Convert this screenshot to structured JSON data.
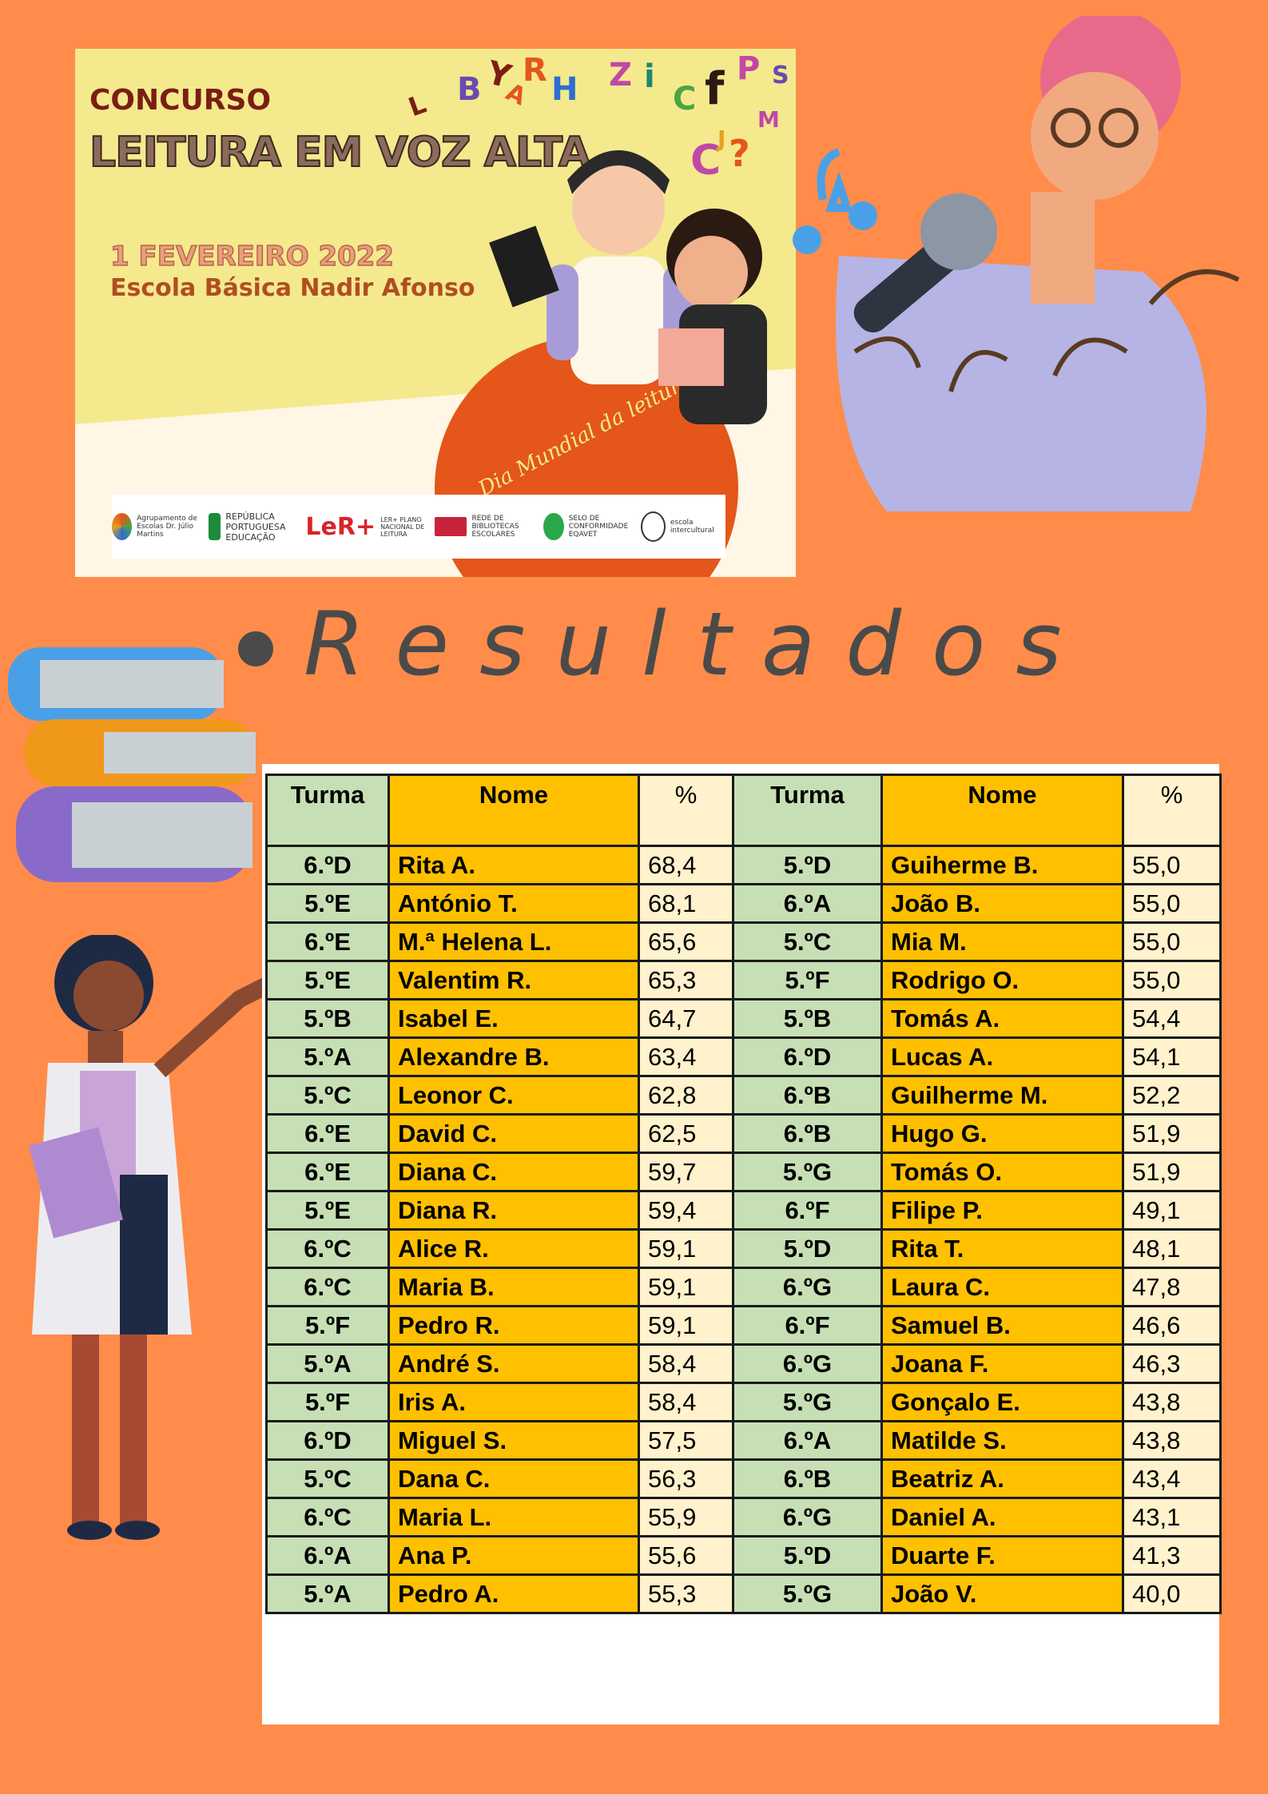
{
  "poster": {
    "concurso": "CONCURSO",
    "title": "LEITURA EM VOZ ALTA",
    "date": "1 FEVEREIRO 2022",
    "school": "Escola Básica Nadir Afonso",
    "arch_text": "Dia Mundial da leitura em Voz Alta",
    "letters": [
      "L",
      "B",
      "Y",
      "R",
      "A",
      "H",
      "Z",
      "i",
      "C",
      "f",
      "P",
      "S",
      "C",
      "?",
      "M",
      "J"
    ],
    "logos": [
      {
        "icon": "aena-logo",
        "label": "Agrupamento de Escolas Dr. Júlio Martins"
      },
      {
        "icon": "republica-portuguesa-logo",
        "label": "REPÚBLICA PORTUGUESA EDUCAÇÃO"
      },
      {
        "icon": "ler-logo",
        "label": "LER+ PLANO NACIONAL DE LEITURA"
      },
      {
        "icon": "rbe-logo",
        "label": "REDE DE BIBLIOTECAS ESCOLARES"
      },
      {
        "icon": "eqavet-logo",
        "label": "SELO DE CONFORMIDADE EQAVET"
      },
      {
        "icon": "escola-intercultural-logo",
        "label": "escola intercultural"
      }
    ]
  },
  "heading": "Resultados",
  "table": {
    "headers": [
      "Turma",
      "Nome",
      "%",
      "Turma",
      "Nome",
      "%"
    ],
    "rows": [
      [
        "6.ºD",
        "Rita A.",
        "68,4",
        "5.ºD",
        "Guiherme B.",
        "55,0"
      ],
      [
        "5.ºE",
        "António T.",
        "68,1",
        "6.ºA",
        "João B.",
        "55,0"
      ],
      [
        "6.ºE",
        "M.ª Helena L.",
        "65,6",
        "5.ºC",
        "Mia M.",
        "55,0"
      ],
      [
        "5.ºE",
        "Valentim R.",
        "65,3",
        "5.ºF",
        "Rodrigo O.",
        "55,0"
      ],
      [
        "5.ºB",
        "Isabel E.",
        "64,7",
        "5.ºB",
        "Tomás A.",
        "54,4"
      ],
      [
        "5.ºA",
        "Alexandre B.",
        "63,4",
        "6.ºD",
        "Lucas A.",
        "54,1"
      ],
      [
        "5.ºC",
        "Leonor C.",
        "62,8",
        "6.ºB",
        "Guilherme M.",
        "52,2"
      ],
      [
        "6.ºE",
        "David C.",
        "62,5",
        "6.ºB",
        "Hugo G.",
        "51,9"
      ],
      [
        "6.ºE",
        "Diana C.",
        "59,7",
        "5.ºG",
        "Tomás O.",
        "51,9"
      ],
      [
        "5.ºE",
        "Diana R.",
        "59,4",
        "6.ºF",
        "Filipe P.",
        "49,1"
      ],
      [
        "6.ºC",
        "Alice R.",
        "59,1",
        "5.ºD",
        "Rita T.",
        "48,1"
      ],
      [
        "6.ºC",
        "Maria B.",
        "59,1",
        "6.ºG",
        "Laura C.",
        "47,8"
      ],
      [
        "5.ºF",
        "Pedro R.",
        "59,1",
        "6.ºF",
        "Samuel B.",
        "46,6"
      ],
      [
        "5.ºA",
        "André S.",
        "58,4",
        "6.ºG",
        "Joana F.",
        "46,3"
      ],
      [
        "5.ºF",
        "Iris A.",
        "58,4",
        "5.ºG",
        "Gonçalo E.",
        "43,8"
      ],
      [
        "6.ºD",
        "Miguel S.",
        "57,5",
        "6.ºA",
        "Matilde S.",
        "43,8"
      ],
      [
        "5.ºC",
        "Dana C.",
        "56,3",
        "6.ºB",
        "Beatriz A.",
        "43,4"
      ],
      [
        "6.ºC",
        "Maria L.",
        "55,9",
        "6.ºG",
        "Daniel A.",
        "43,1"
      ],
      [
        "6.ºA",
        "Ana P.",
        "55,6",
        "5.ºD",
        "Duarte F.",
        "41,3"
      ],
      [
        "5.ºA",
        "Pedro A.",
        "55,3",
        "5.ºG",
        "João V.",
        "40,0"
      ]
    ]
  },
  "colors": {
    "background": "#FF8C4A",
    "turma_cell": "#C6DFB4",
    "nome_cell": "#FFC000",
    "pct_cell": "#FFF2CC"
  }
}
